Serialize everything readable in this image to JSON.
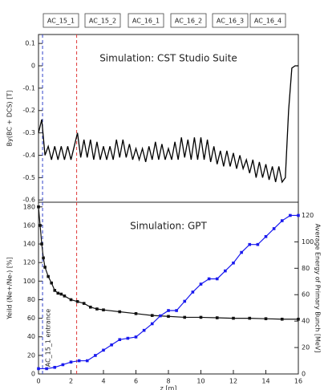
{
  "section_labels": [
    "AC_15_1",
    "AC_15_2",
    "AC_16_1",
    "AC_16_2",
    "AC_16_3",
    "AC_16_4"
  ],
  "chart_data": [
    {
      "type": "line",
      "title": "Simulation: CST Studio Suite",
      "y_label": "By(BC + DCS) [T]",
      "xlim": [
        0,
        16
      ],
      "ylim": [
        -0.61,
        0.14
      ],
      "yticks": [
        0.1,
        0,
        -0.1,
        -0.2,
        -0.3,
        -0.4,
        -0.5,
        -0.6
      ],
      "vlines": [
        {
          "x": 0.25,
          "color": "#3344cc"
        },
        {
          "x": 2.35,
          "color": "#e03a3a"
        }
      ],
      "color": "#000000",
      "x": [
        0,
        0.2,
        0.4,
        0.6,
        0.8,
        1,
        1.2,
        1.4,
        1.6,
        1.8,
        2,
        2.2,
        2.4,
        2.6,
        2.8,
        3,
        3.2,
        3.4,
        3.6,
        3.8,
        4,
        4.2,
        4.4,
        4.6,
        4.8,
        5,
        5.2,
        5.4,
        5.6,
        5.8,
        6,
        6.2,
        6.4,
        6.6,
        6.8,
        7,
        7.2,
        7.4,
        7.6,
        7.8,
        8,
        8.2,
        8.4,
        8.6,
        8.8,
        9,
        9.2,
        9.4,
        9.6,
        9.8,
        10,
        10.2,
        10.4,
        10.6,
        10.8,
        11,
        11.2,
        11.4,
        11.6,
        11.8,
        12,
        12.2,
        12.4,
        12.6,
        12.8,
        13,
        13.2,
        13.4,
        13.6,
        13.8,
        14,
        14.2,
        14.4,
        14.6,
        14.8,
        15,
        15.2,
        15.4,
        15.6,
        15.8,
        16
      ],
      "values": [
        -0.3,
        -0.24,
        -0.4,
        -0.36,
        -0.42,
        -0.36,
        -0.42,
        -0.36,
        -0.42,
        -0.36,
        -0.42,
        -0.36,
        -0.3,
        -0.41,
        -0.33,
        -0.41,
        -0.33,
        -0.42,
        -0.34,
        -0.42,
        -0.36,
        -0.42,
        -0.36,
        -0.42,
        -0.33,
        -0.41,
        -0.33,
        -0.41,
        -0.35,
        -0.42,
        -0.37,
        -0.42,
        -0.37,
        -0.43,
        -0.36,
        -0.42,
        -0.34,
        -0.42,
        -0.35,
        -0.42,
        -0.37,
        -0.42,
        -0.34,
        -0.42,
        -0.32,
        -0.41,
        -0.33,
        -0.42,
        -0.32,
        -0.42,
        -0.32,
        -0.42,
        -0.33,
        -0.43,
        -0.36,
        -0.44,
        -0.38,
        -0.45,
        -0.38,
        -0.45,
        -0.39,
        -0.46,
        -0.4,
        -0.46,
        -0.42,
        -0.48,
        -0.42,
        -0.5,
        -0.43,
        -0.5,
        -0.44,
        -0.51,
        -0.45,
        -0.52,
        -0.45,
        -0.52,
        -0.5,
        -0.2,
        -0.01,
        0,
        0
      ]
    },
    {
      "type": "line",
      "title": "Simulation: GPT",
      "y_label": "Yeild (Ne+/Ne-) [%]",
      "y2_label": "Average Energy of Primary Bunch [MeV]",
      "x_label": "z [m]",
      "annotation": "AC_15_1 entrance",
      "xlim": [
        0,
        16
      ],
      "xticks": [
        0,
        2,
        4,
        6,
        8,
        10,
        12,
        14,
        16
      ],
      "ylim": [
        0,
        185
      ],
      "yticks": [
        0,
        20,
        40,
        60,
        80,
        100,
        120,
        140,
        160,
        180
      ],
      "y2lim": [
        0,
        130
      ],
      "y2ticks": [
        0,
        20,
        40,
        60,
        80,
        100,
        120
      ],
      "vlines": [
        {
          "x": 0.25,
          "color": "#3344cc"
        },
        {
          "x": 2.35,
          "color": "#e03a3a"
        }
      ],
      "series": [
        {
          "color": "#111111",
          "x": [
            0,
            0.1,
            0.2,
            0.3,
            0.4,
            0.6,
            0.8,
            1,
            1.2,
            1.4,
            1.6,
            2,
            2.4,
            2.8,
            3.2,
            3.6,
            4,
            5,
            6,
            7,
            8,
            9,
            10,
            11,
            12,
            13,
            14,
            15,
            16
          ],
          "values": [
            180,
            160,
            140,
            125,
            115,
            105,
            98,
            90,
            87,
            86,
            84,
            80,
            78,
            76,
            72,
            70,
            69,
            67,
            65,
            63,
            62,
            61,
            61,
            60.5,
            60,
            60,
            59.5,
            59,
            59
          ]
        },
        {
          "color": "#1a1aee",
          "axis": "y2",
          "x": [
            0,
            0.5,
            1,
            1.5,
            2,
            2.5,
            3,
            3.5,
            4,
            4.5,
            5,
            5.5,
            6,
            6.5,
            7,
            7.5,
            8,
            8.5,
            9,
            9.5,
            10,
            10.5,
            11,
            11.5,
            12,
            12.5,
            13,
            13.5,
            14,
            14.5,
            15,
            15.5,
            16
          ],
          "values": [
            4,
            4,
            5,
            7,
            9,
            10,
            10,
            14,
            18,
            22,
            26,
            27,
            28,
            33,
            38,
            44,
            48,
            48,
            55,
            62,
            68,
            72,
            72,
            78,
            84,
            92,
            98,
            98,
            104,
            110,
            116,
            120,
            120
          ]
        }
      ]
    }
  ]
}
